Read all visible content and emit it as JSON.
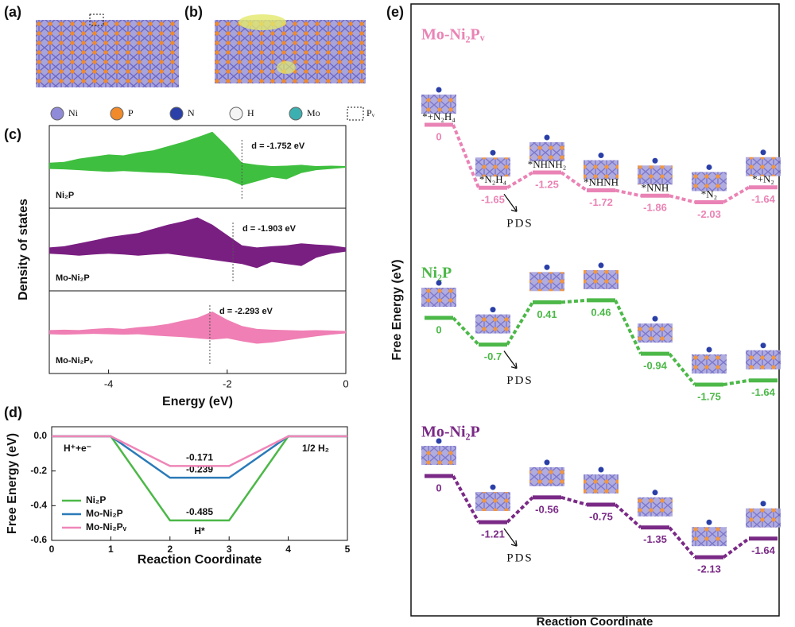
{
  "panel_labels": [
    "(a)",
    "(b)",
    "(c)",
    "(d)",
    "(e)"
  ],
  "atom_legend": [
    "Ni",
    "P",
    "N",
    "H",
    "Mo",
    "Pᵥ"
  ],
  "chart_data": [
    {
      "type": "area",
      "ylabel": "Density of states",
      "xlabel": "Energy (eV)",
      "xlim": [
        -5,
        0
      ],
      "xticks": [
        -4,
        -2,
        0
      ],
      "ylim": [
        -1,
        1
      ],
      "x": [
        -5,
        -4.75,
        -4.5,
        -4.25,
        -4,
        -3.75,
        -3.5,
        -3.25,
        -3,
        -2.75,
        -2.5,
        -2.25,
        -2,
        -1.75,
        -1.5,
        -1.25,
        -1,
        -0.75,
        -0.5,
        -0.25,
        0
      ],
      "series": [
        {
          "name": "Ni₂P",
          "color": "#3fbf3f",
          "upper": [
            0.1,
            0.12,
            0.2,
            0.25,
            0.3,
            0.28,
            0.35,
            0.4,
            0.5,
            0.6,
            0.72,
            0.85,
            0.5,
            0.1,
            0.05,
            0.02,
            0.03,
            0.05,
            0.02,
            0.03,
            0.02
          ],
          "lower": [
            -0.05,
            -0.06,
            -0.08,
            -0.1,
            -0.12,
            -0.1,
            -0.12,
            -0.14,
            -0.15,
            -0.18,
            -0.2,
            -0.25,
            -0.3,
            -0.45,
            -0.35,
            -0.25,
            -0.3,
            -0.15,
            -0.08,
            -0.05,
            -0.02
          ],
          "d_center": -1.752,
          "annotation": "d = -1.752 eV"
        },
        {
          "name": "Mo-Ni₂P",
          "color": "#7a1f82",
          "upper": [
            0.05,
            0.08,
            0.15,
            0.22,
            0.3,
            0.35,
            0.4,
            0.5,
            0.6,
            0.68,
            0.78,
            0.6,
            0.35,
            0.1,
            0.05,
            0.08,
            0.1,
            0.15,
            0.12,
            0.1,
            0.05
          ],
          "lower": [
            -0.1,
            -0.12,
            -0.15,
            -0.12,
            -0.1,
            -0.12,
            -0.15,
            -0.12,
            -0.1,
            -0.15,
            -0.2,
            -0.25,
            -0.3,
            -0.35,
            -0.45,
            -0.3,
            -0.35,
            -0.4,
            -0.2,
            -0.1,
            -0.05
          ],
          "d_center": -1.903,
          "annotation": "d = -1.903 eV"
        },
        {
          "name": "Mo-Ni₂Pᵥ",
          "color": "#ef7fb4",
          "upper": [
            0.05,
            0.06,
            0.05,
            0.08,
            0.1,
            0.08,
            0.12,
            0.15,
            0.2,
            0.28,
            0.35,
            0.5,
            0.3,
            0.15,
            0.08,
            0.06,
            0.05,
            0.04,
            0.05,
            0.04,
            0.03
          ],
          "lower": [
            -0.05,
            -0.06,
            -0.05,
            -0.04,
            -0.05,
            -0.06,
            -0.05,
            -0.08,
            -0.1,
            -0.12,
            -0.15,
            -0.18,
            -0.15,
            -0.22,
            -0.28,
            -0.25,
            -0.2,
            -0.15,
            -0.1,
            -0.06,
            -0.03
          ],
          "d_center": -2.293,
          "annotation": "d = -2.293 eV"
        }
      ]
    },
    {
      "type": "line",
      "xlabel": "Reaction Coordinate",
      "ylabel": "Free Energy (eV)",
      "xlim": [
        0,
        5
      ],
      "xticks": [
        0,
        1,
        2,
        3,
        4,
        5
      ],
      "ylim": [
        -0.6,
        0.055
      ],
      "yticks": [
        {
          "value": 0,
          "label": "0.0"
        },
        -0.2,
        -0.4,
        -0.6
      ],
      "x": [
        0,
        1,
        2,
        3,
        4,
        5
      ],
      "series": [
        {
          "name": "Ni₂P",
          "color": "#4cb848",
          "values": [
            0,
            0,
            -0.485,
            -0.485,
            0,
            0
          ]
        },
        {
          "name": "Mo-Ni₂P",
          "color": "#2a7ab8",
          "values": [
            0,
            0,
            -0.239,
            -0.239,
            0,
            0
          ]
        },
        {
          "name": "Mo-Ni₂Pᵥ",
          "color": "#ef86b8",
          "values": [
            0,
            0,
            -0.171,
            -0.171,
            0,
            0
          ]
        }
      ],
      "annotations": [
        "H⁺+e⁻",
        "1/2 H₂",
        "H*"
      ],
      "legend": "lower left"
    },
    {
      "type": "step",
      "xlabel": "Reaction Coordinate",
      "ylabel": "Free Energy (eV)",
      "categories": [
        "*+N₂H₄",
        "*N₂H₄",
        "*NHNH₂",
        "*NHNH",
        "*NNH",
        "*N₂",
        "*+N₂"
      ],
      "series": [
        {
          "name": "Mo-Ni₂Pᵥ",
          "color": "#ea83b5",
          "values": [
            0,
            -1.65,
            -1.25,
            -1.72,
            -1.86,
            -2.03,
            -1.64
          ],
          "annotation": "PDS"
        },
        {
          "name": "Ni₂P",
          "color": "#4cb848",
          "values": [
            0,
            -0.7,
            0.41,
            0.46,
            -0.94,
            -1.75,
            -1.64
          ],
          "annotation": "PDS"
        },
        {
          "name": "Mo-Ni₂P",
          "color": "#7a2a86",
          "values": [
            0,
            -1.21,
            -0.56,
            -0.75,
            -1.35,
            -2.13,
            -1.64
          ],
          "annotation": "PDS"
        }
      ]
    }
  ]
}
